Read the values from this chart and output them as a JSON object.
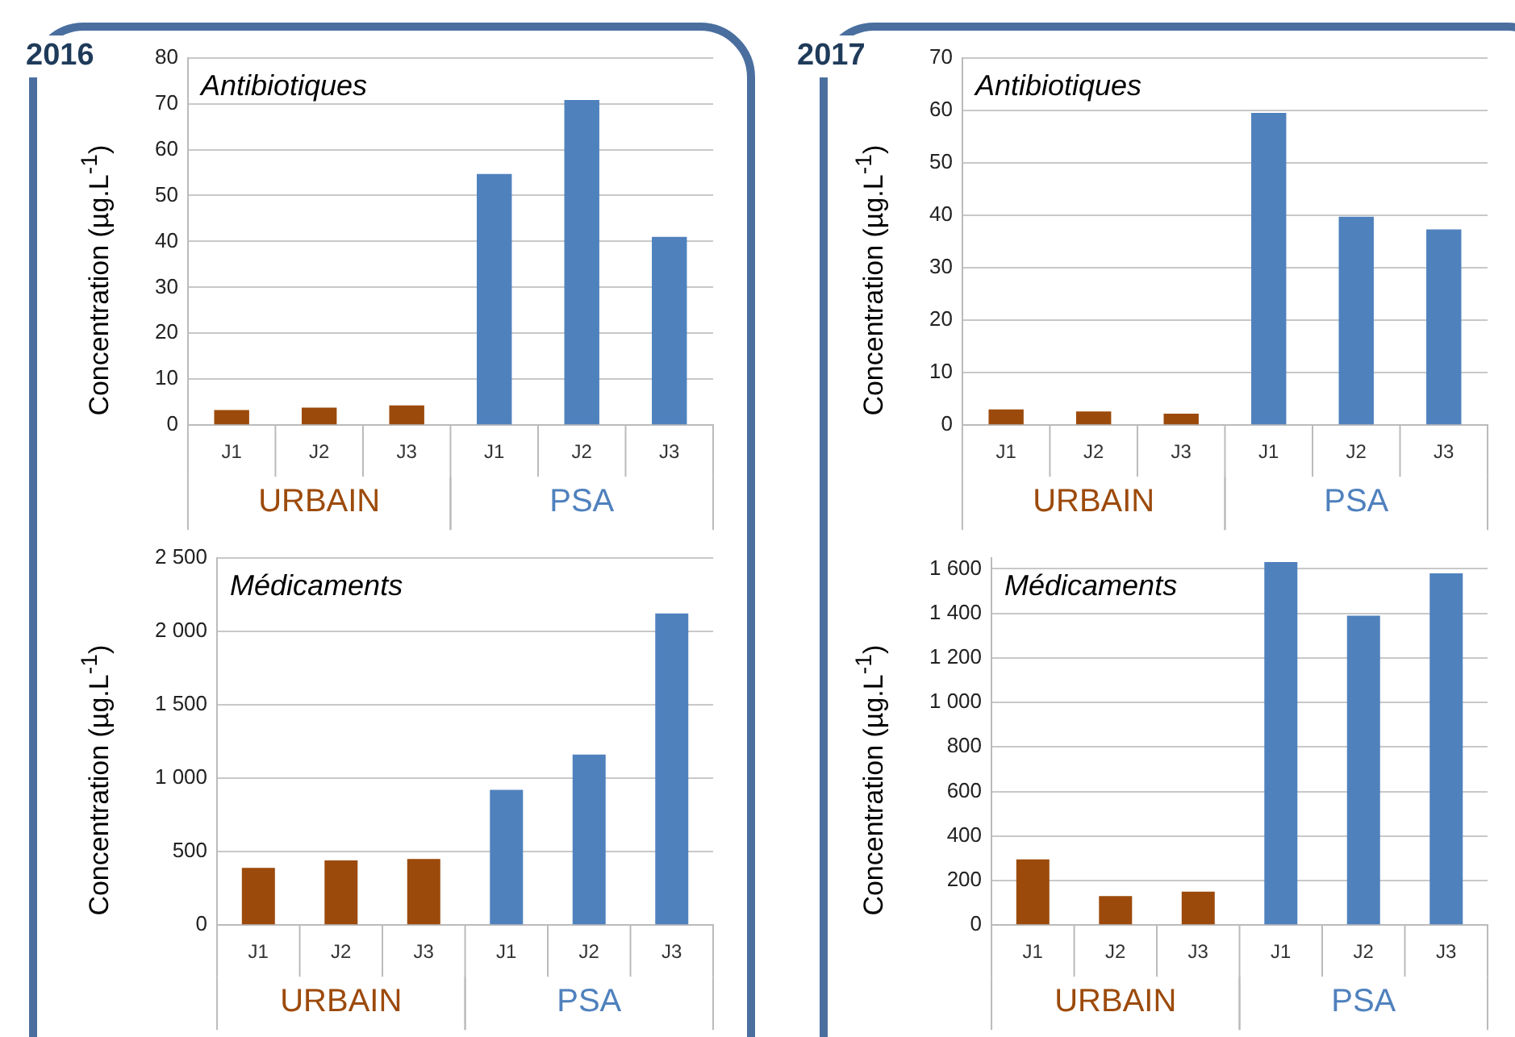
{
  "chart_data": [
    {
      "type": "bar",
      "title": "Antibiotiques",
      "ylabel": "Concentration (µg.L$^{-1}$)",
      "annotations": [
        "2016"
      ],
      "categories": [
        "J1",
        "J2",
        "J3",
        "J1",
        "J2",
        "J3"
      ],
      "series": [
        {
          "name": "URBAIN",
          "color": "#9c4a0b",
          "values": [
            3.3,
            3.8,
            4.3,
            null,
            null,
            null
          ]
        },
        {
          "name": "PSA",
          "color": "#4f81bd",
          "values": [
            null,
            null,
            null,
            54.7,
            70.8,
            41.0
          ]
        }
      ],
      "ylim": [
        0,
        80
      ],
      "yticks": [
        0,
        10,
        20,
        30,
        40,
        50,
        60,
        70,
        80
      ],
      "grid": "y"
    },
    {
      "type": "bar",
      "title": "Antibiotiques",
      "ylabel": "Concentration (µg.L$^{-1}$)",
      "annotations": [
        "2017"
      ],
      "categories": [
        "J1",
        "J2",
        "J3",
        "J1",
        "J2",
        "J3"
      ],
      "series": [
        {
          "name": "URBAIN",
          "color": "#9c4a0b",
          "values": [
            3.0,
            2.6,
            2.2,
            null,
            null,
            null
          ]
        },
        {
          "name": "PSA",
          "color": "#4f81bd",
          "values": [
            null,
            null,
            null,
            59.5,
            39.7,
            37.3
          ]
        }
      ],
      "ylim": [
        0,
        70
      ],
      "yticks": [
        0,
        10,
        20,
        30,
        40,
        50,
        60,
        70
      ],
      "grid": "y"
    },
    {
      "type": "bar",
      "title": "Médicaments",
      "ylabel": "Concentration (µg.L$^{-1}$)",
      "categories": [
        "J1",
        "J2",
        "J3",
        "J1",
        "J2",
        "J3"
      ],
      "series": [
        {
          "name": "URBAIN",
          "color": "#9c4a0b",
          "values": [
            390,
            440,
            450,
            null,
            null,
            null
          ]
        },
        {
          "name": "PSA",
          "color": "#4f81bd",
          "values": [
            null,
            null,
            null,
            920,
            1160,
            2120
          ]
        }
      ],
      "ylim": [
        0,
        2500
      ],
      "yticks": [
        0,
        500,
        {
          "value": 1000,
          "label": "1 000"
        },
        {
          "value": 1500,
          "label": "1 500"
        },
        {
          "value": 2000,
          "label": "2 000"
        },
        {
          "value": 2500,
          "label": "2 500"
        }
      ],
      "grid": "y"
    },
    {
      "type": "bar",
      "title": "Médicaments",
      "ylabel": "Concentration (µg.L$^{-1}$)",
      "categories": [
        "J1",
        "J2",
        "J3",
        "J1",
        "J2",
        "J3"
      ],
      "series": [
        {
          "name": "URBAIN",
          "color": "#9c4a0b",
          "values": [
            295,
            130,
            150,
            null,
            null,
            null
          ]
        },
        {
          "name": "PSA",
          "color": "#4f81bd",
          "values": [
            null,
            null,
            null,
            1630,
            1390,
            1580
          ]
        }
      ],
      "ylim": [
        0,
        1650
      ],
      "yticks": [
        0,
        200,
        400,
        600,
        800,
        {
          "value": 1000,
          "label": "1 000"
        },
        {
          "value": 1200,
          "label": "1 200"
        },
        {
          "value": 1400,
          "label": "1 400"
        },
        {
          "value": 1600,
          "label": "1 600"
        }
      ],
      "grid": "y"
    }
  ]
}
